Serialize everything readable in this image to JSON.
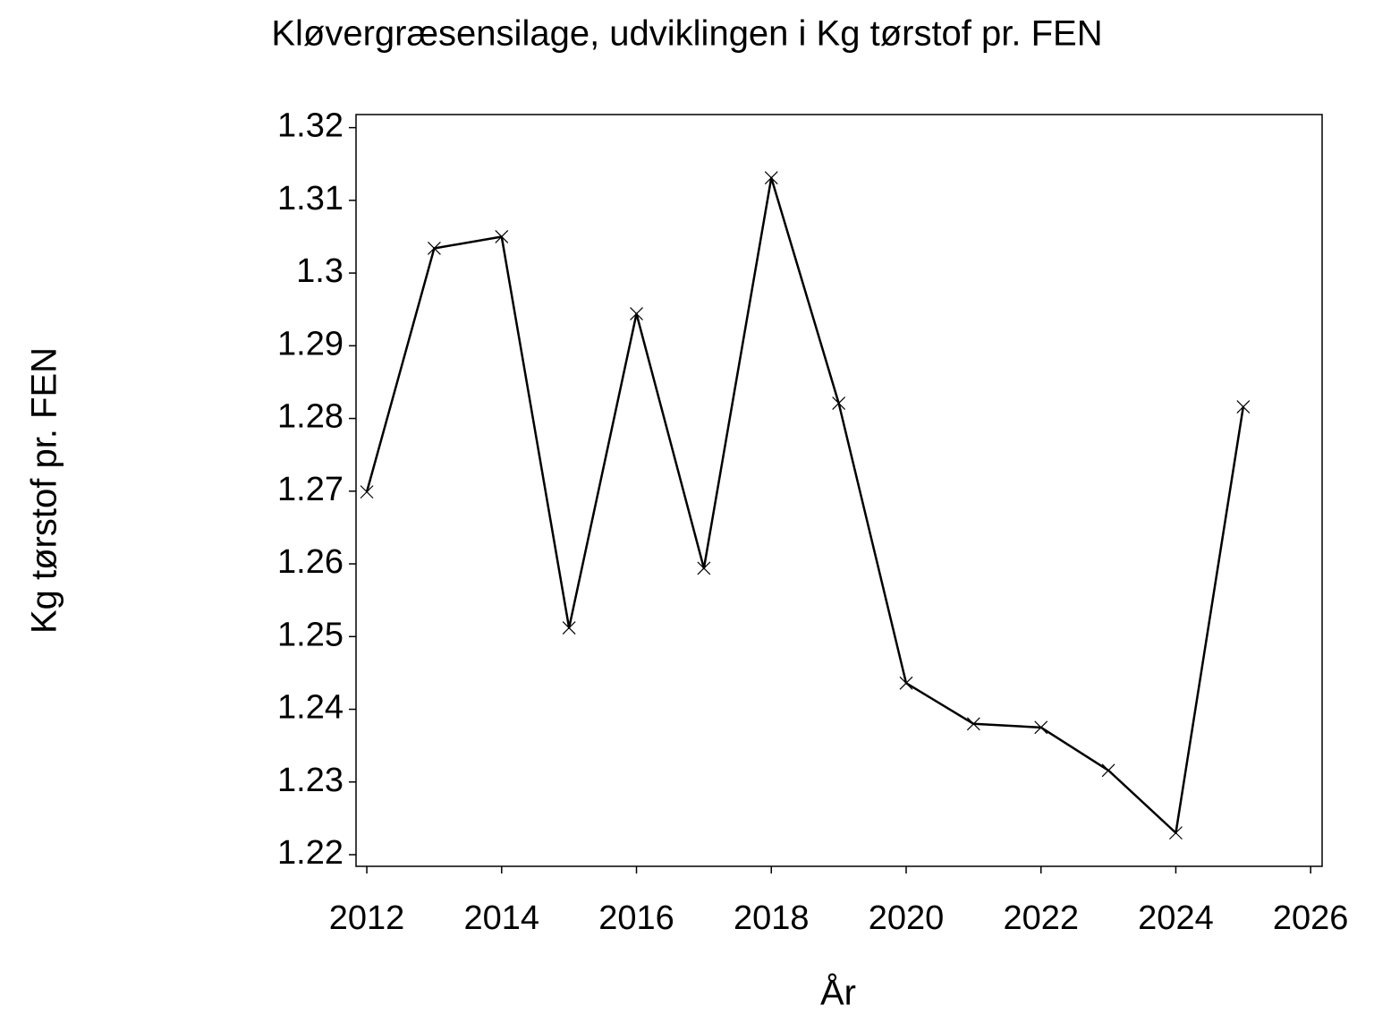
{
  "chart_data": {
    "type": "line",
    "title": "Kløvergræsensilage,  udviklingen  i  Kg  tørstof  pr.  FEN",
    "x_label": "År",
    "y_label": "Kg  tørstof  pr.  FEN",
    "x": [
      2012,
      2013,
      2014,
      2015,
      2016,
      2017,
      2018,
      2019,
      2020,
      2021,
      2022,
      2023,
      2024,
      2025
    ],
    "series": [
      {
        "name": "Kg tørstof pr. FEN",
        "color": "#000000",
        "values": [
          1.2699,
          1.3034,
          1.305,
          1.2512,
          1.2944,
          1.2594,
          1.3131,
          1.2821,
          1.2436,
          1.238,
          1.2375,
          1.2316,
          1.223,
          1.2816
        ]
      }
    ],
    "xlim": [
      2011.84,
      2026.17
    ],
    "xticks": [
      2012,
      2014,
      2016,
      2018,
      2020,
      2022,
      2024,
      2026
    ],
    "ylim": [
      1.2184,
      1.3218
    ],
    "yticks": [
      1.22,
      1.23,
      1.24,
      1.25,
      1.26,
      1.27,
      1.28,
      1.29,
      {
        "value": 1.3,
        "label": "1.3"
      },
      1.31,
      1.32
    ],
    "marker": "x",
    "grid": false
  }
}
